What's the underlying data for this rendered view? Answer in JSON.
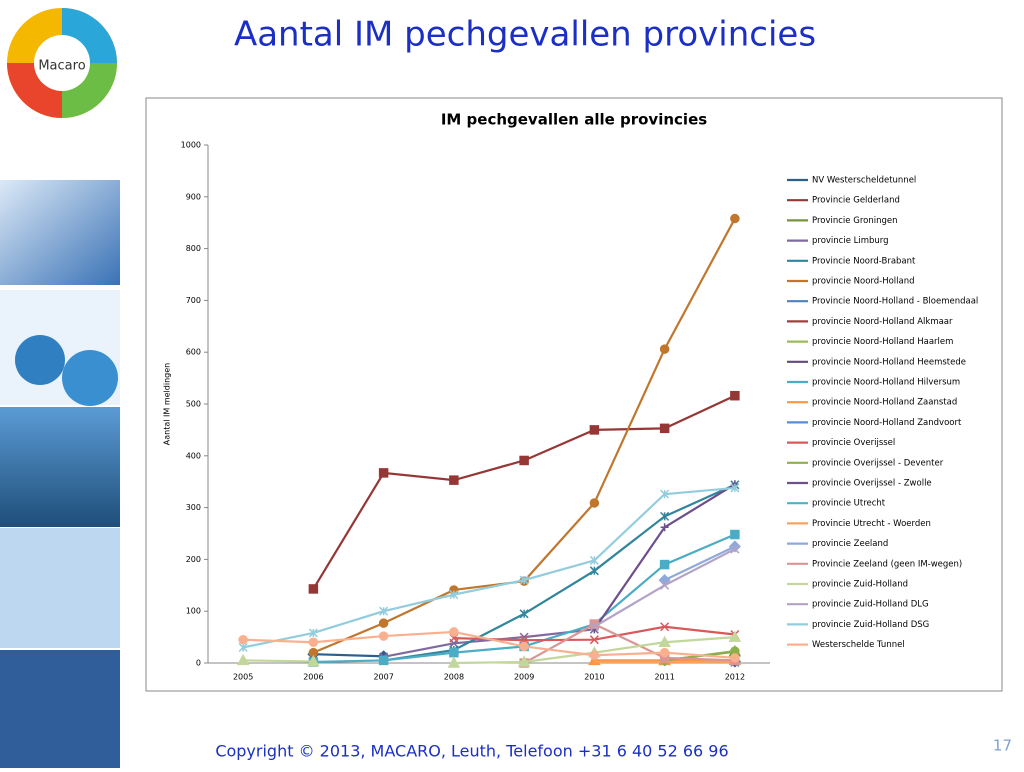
{
  "slide": {
    "title": "Aantal IM pechgevallen provincies",
    "logo_text": "Macaro",
    "footer": "Copyright © 2013, MACARO, Leuth, Telefoon +31 6 40 52 66 96",
    "page_number": "17"
  },
  "chart_data": {
    "type": "line",
    "title": "IM pechgevallen alle provincies",
    "y_label": "Aantal IM meldingen",
    "categories": [
      "2005",
      "2006",
      "2007",
      "2008",
      "2009",
      "2010",
      "2011",
      "2012"
    ],
    "ylim": [
      0,
      1000
    ],
    "yticks": [
      0,
      100,
      200,
      300,
      400,
      500,
      600,
      700,
      800,
      900,
      1000
    ],
    "legend": "right",
    "series": [
      {
        "name": "NV Westerscheldetunnel",
        "color": "#2e5f8a",
        "marker": "diamond",
        "values": [
          null,
          17,
          13,
          null,
          null,
          null,
          null,
          null
        ]
      },
      {
        "name": "Provincie Gelderland",
        "color": "#953735",
        "marker": "square",
        "values": [
          null,
          143,
          367,
          353,
          391,
          450,
          453,
          516
        ]
      },
      {
        "name": "Provincie Groningen",
        "color": "#77933c",
        "marker": "triangle",
        "values": [
          null,
          null,
          null,
          null,
          null,
          null,
          5,
          22
        ]
      },
      {
        "name": "provincie Limburg",
        "color": "#7f6aa0",
        "marker": "x",
        "values": [
          null,
          null,
          12,
          38,
          50,
          65,
          null,
          null
        ]
      },
      {
        "name": "Provincie Noord-Brabant",
        "color": "#31859c",
        "marker": "star",
        "values": [
          null,
          null,
          5,
          25,
          95,
          178,
          283,
          344
        ]
      },
      {
        "name": "provincie Noord-Holland",
        "color": "#c0772d",
        "marker": "circle",
        "values": [
          null,
          20,
          77,
          141,
          158,
          309,
          606,
          858
        ]
      },
      {
        "name": "Provincie Noord-Holland - Bloemendaal",
        "color": "#4f81bd",
        "marker": "plus",
        "values": [
          null,
          null,
          null,
          null,
          null,
          null,
          2,
          3
        ]
      },
      {
        "name": "provincie Noord-Holland Alkmaar",
        "color": "#a0403c",
        "marker": "none",
        "values": [
          null,
          null,
          null,
          null,
          null,
          null,
          null,
          5
        ]
      },
      {
        "name": "provincie Noord-Holland Haarlem",
        "color": "#9bbb59",
        "marker": "none",
        "values": [
          null,
          null,
          null,
          null,
          null,
          null,
          null,
          2
        ]
      },
      {
        "name": "provincie Noord-Holland Heemstede",
        "color": "#604a7b",
        "marker": "diamond",
        "values": [
          null,
          null,
          null,
          null,
          null,
          null,
          null,
          3
        ]
      },
      {
        "name": "provincie Noord-Holland Hilversum",
        "color": "#4bacc6",
        "marker": "square",
        "values": [
          null,
          2,
          5,
          20,
          32,
          75,
          190,
          248
        ]
      },
      {
        "name": "provincie Noord-Holland Zaanstad",
        "color": "#f79646",
        "marker": "triangle",
        "values": [
          null,
          null,
          null,
          null,
          null,
          5,
          5,
          5
        ]
      },
      {
        "name": "provincie Noord-Holland Zandvoort",
        "color": "#558ed5",
        "marker": "x",
        "values": [
          null,
          null,
          null,
          null,
          null,
          null,
          null,
          1
        ]
      },
      {
        "name": "provincie Overijssel",
        "color": "#d9595a",
        "marker": "x",
        "values": [
          null,
          null,
          null,
          48,
          44,
          45,
          70,
          55
        ]
      },
      {
        "name": "provincie Overijssel - Deventer",
        "color": "#8db04a",
        "marker": "circle",
        "values": [
          null,
          null,
          null,
          null,
          null,
          null,
          5,
          23
        ]
      },
      {
        "name": "provincie Overijssel - Zwolle",
        "color": "#6d4f8c",
        "marker": "plus",
        "values": [
          null,
          null,
          null,
          null,
          null,
          65,
          262,
          345
        ]
      },
      {
        "name": "provincie Utrecht",
        "color": "#4bb3c8",
        "marker": "none",
        "values": [
          null,
          null,
          null,
          null,
          null,
          null,
          null,
          1
        ]
      },
      {
        "name": "Provincie Utrecht - Woerden",
        "color": "#f7a35c",
        "marker": "none",
        "values": [
          null,
          null,
          null,
          null,
          null,
          2,
          2,
          2
        ]
      },
      {
        "name": "provincie Zeeland",
        "color": "#8ea9db",
        "marker": "diamond",
        "values": [
          null,
          null,
          null,
          null,
          null,
          null,
          160,
          225
        ]
      },
      {
        "name": "Provincie Zeeland (geen IM-wegen)",
        "color": "#d99694",
        "marker": "square",
        "values": [
          null,
          null,
          null,
          null,
          0,
          75,
          10,
          5
        ]
      },
      {
        "name": "provincie Zuid-Holland",
        "color": "#c3d69b",
        "marker": "triangle",
        "values": [
          5,
          3,
          null,
          0,
          2,
          20,
          40,
          50
        ]
      },
      {
        "name": "provincie Zuid-Holland DLG",
        "color": "#b3a2c7",
        "marker": "x",
        "values": [
          null,
          null,
          null,
          null,
          null,
          70,
          150,
          220
        ]
      },
      {
        "name": "provincie Zuid-Holland DSG",
        "color": "#93cddd",
        "marker": "star",
        "values": [
          30,
          58,
          100,
          132,
          160,
          198,
          326,
          338
        ]
      },
      {
        "name": "Westerschelde Tunnel",
        "color": "#fab08f",
        "marker": "circle",
        "values": [
          45,
          40,
          52,
          60,
          32,
          15,
          20,
          10
        ]
      }
    ]
  }
}
